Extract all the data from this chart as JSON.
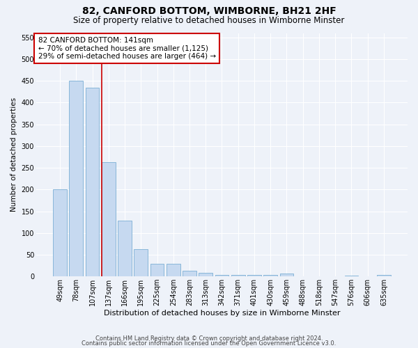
{
  "title": "82, CANFORD BOTTOM, WIMBORNE, BH21 2HF",
  "subtitle": "Size of property relative to detached houses in Wimborne Minster",
  "xlabel": "Distribution of detached houses by size in Wimborne Minster",
  "ylabel": "Number of detached properties",
  "footer_line1": "Contains HM Land Registry data © Crown copyright and database right 2024.",
  "footer_line2": "Contains public sector information licensed under the Open Government Licence v3.0.",
  "categories": [
    "49sqm",
    "78sqm",
    "107sqm",
    "137sqm",
    "166sqm",
    "195sqm",
    "225sqm",
    "254sqm",
    "283sqm",
    "313sqm",
    "342sqm",
    "371sqm",
    "401sqm",
    "430sqm",
    "459sqm",
    "488sqm",
    "518sqm",
    "547sqm",
    "576sqm",
    "606sqm",
    "635sqm"
  ],
  "values": [
    200,
    450,
    435,
    263,
    128,
    62,
    29,
    29,
    13,
    8,
    4,
    4,
    4,
    4,
    7,
    1,
    0,
    0,
    2,
    0,
    3
  ],
  "bar_color": "#c6d9f0",
  "bar_edge_color": "#7bafd4",
  "redline_index": 2.575,
  "annotation_title": "82 CANFORD BOTTOM: 141sqm",
  "annotation_line1": "← 70% of detached houses are smaller (1,125)",
  "annotation_line2": "29% of semi-detached houses are larger (464) →",
  "ylim": [
    0,
    560
  ],
  "yticks": [
    0,
    50,
    100,
    150,
    200,
    250,
    300,
    350,
    400,
    450,
    500,
    550
  ],
  "background_color": "#eef2f9",
  "grid_color": "#ffffff",
  "annotation_box_color": "#ffffff",
  "annotation_box_edge": "#cc0000",
  "redline_color": "#cc0000",
  "title_fontsize": 10,
  "subtitle_fontsize": 8.5,
  "ylabel_fontsize": 7.5,
  "xlabel_fontsize": 8,
  "footer_fontsize": 6,
  "tick_fontsize": 7,
  "ann_fontsize": 7.5
}
